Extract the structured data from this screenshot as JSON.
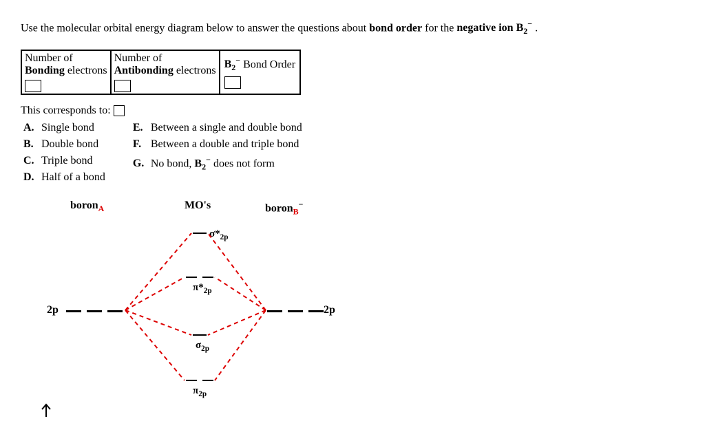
{
  "question": {
    "prefix": "Use the molecular orbital energy diagram below to answer the questions about ",
    "bold1": "bond order",
    "mid": " for the ",
    "bold2": "negative ion B",
    "sub2": "2",
    "sup2": "−",
    "suffix": " ."
  },
  "table": {
    "cell1_line1": "Number of",
    "cell1_line2a": "Bonding",
    "cell1_line2b": " electrons",
    "cell2_line1": "Number of",
    "cell2_line2a": "Antibonding",
    "cell2_line2b": " electrons",
    "cell3_b": "B",
    "cell3_sub": "2",
    "cell3_sup": "−",
    "cell3_rest": " Bond Order"
  },
  "corresponds": "This corresponds to:",
  "options_left": [
    {
      "letter": "A.",
      "text": "Single bond"
    },
    {
      "letter": "B.",
      "text": "Double bond"
    },
    {
      "letter": "C.",
      "text": "Triple bond"
    },
    {
      "letter": "D.",
      "text": "Half of a bond"
    }
  ],
  "options_right": [
    {
      "letter": "E.",
      "text": "Between a single and double bond"
    },
    {
      "letter": "F.",
      "text": "Between a double and triple bond"
    },
    {
      "letter": "G.",
      "html": true,
      "pre": "No bond, ",
      "b": "B",
      "sub": "2",
      "sup": "−",
      "post": " does not form"
    }
  ],
  "diagram": {
    "labelA_pre": "boron",
    "labelA_sub": "A",
    "labelMO": "MO's",
    "labelB_pre": "boron",
    "labelB_sub": "B",
    "labelB_sup": "−",
    "left2p": "2p",
    "right2p": "2p",
    "sigma_star": "σ*",
    "sigma_star_sub": "2p",
    "pi_star": "π*",
    "pi_star_sub": "2p",
    "sigma": "σ",
    "sigma_sub": "2p",
    "pi": "π",
    "pi_sub": "2p",
    "colors": {
      "conn_red": "#d00",
      "dash_black": "#000"
    },
    "stroke_width": 2,
    "dash_pattern": "6,5"
  }
}
